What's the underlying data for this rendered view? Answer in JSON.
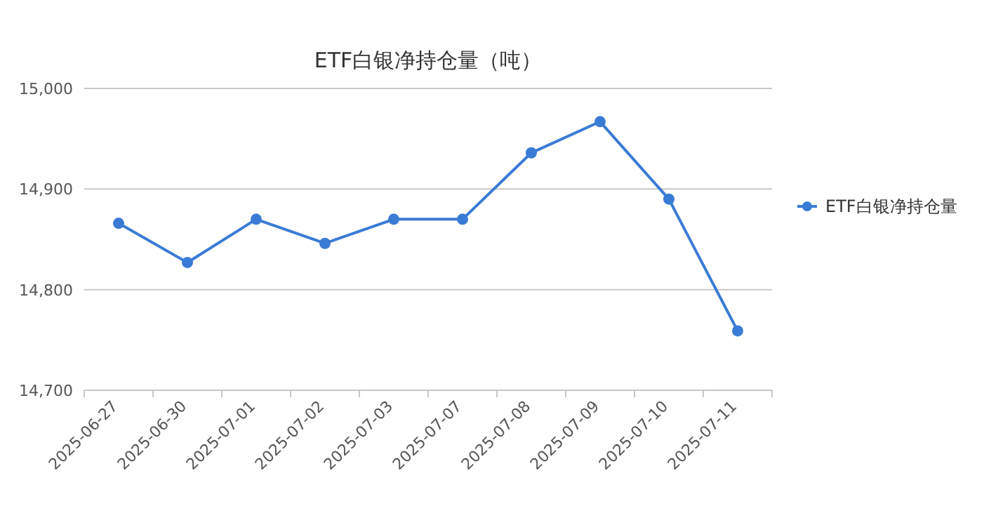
{
  "chart_data": {
    "type": "line",
    "title": "ETF白银净持仓量（吨）",
    "categories": [
      "2025-06-27",
      "2025-06-30",
      "2025-07-01",
      "2025-07-02",
      "2025-07-03",
      "2025-07-07",
      "2025-07-08",
      "2025-07-09",
      "2025-07-10",
      "2025-07-11"
    ],
    "series": [
      {
        "name": "ETF白银净持仓量",
        "color": "#3a7bd5",
        "values": [
          14866,
          14827,
          14870,
          14846,
          14870,
          14870,
          14936,
          14967,
          14890,
          14759
        ]
      }
    ],
    "ylim": [
      14700,
      15000
    ],
    "yticks": [
      {
        "value": 14700,
        "label": "14,700"
      },
      {
        "value": 14800,
        "label": "14,800"
      },
      {
        "value": 14900,
        "label": "14,900"
      },
      {
        "value": 15000,
        "label": "15,000"
      }
    ],
    "grid": "y",
    "legend": "right",
    "marker": "circle",
    "line_style": "solid"
  }
}
